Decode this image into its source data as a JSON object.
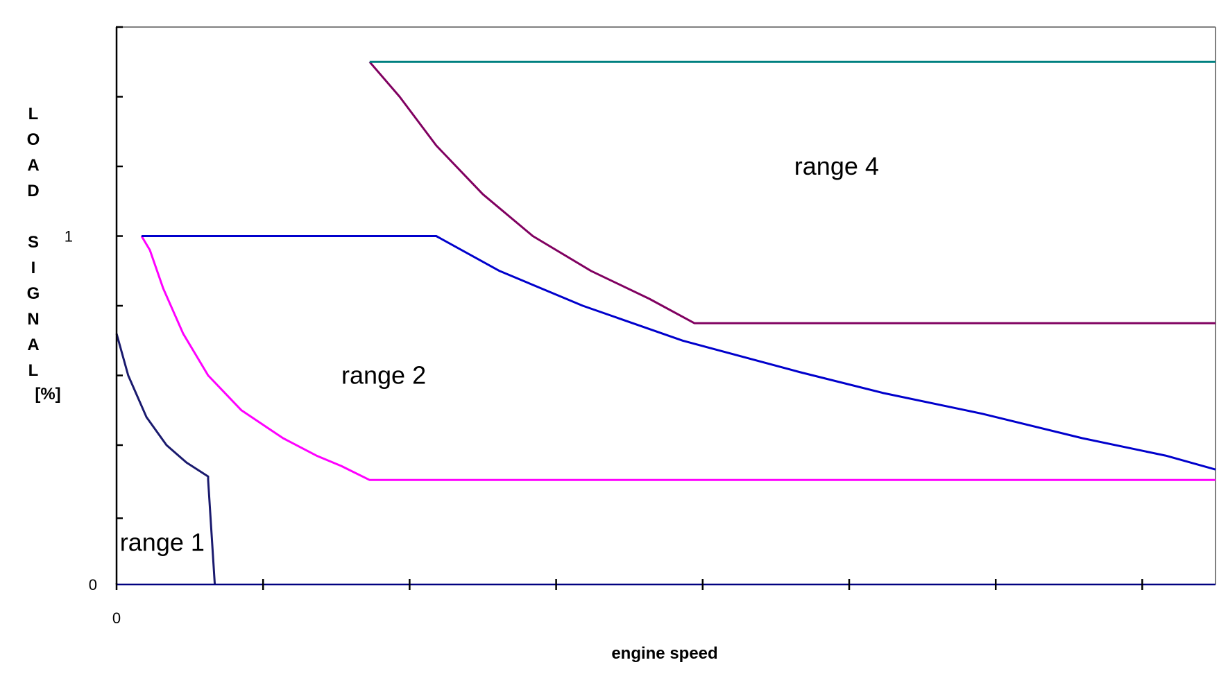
{
  "chart_data": {
    "type": "line",
    "title": "",
    "xlabel": "engine speed",
    "ylabel_letters": [
      "L",
      "O",
      "A",
      "D",
      "",
      "S",
      "I",
      "G",
      "N",
      "A",
      "L"
    ],
    "ylabel_unit": "[%]",
    "xlim": [
      0,
      6.6
    ],
    "ylim": [
      0,
      1.6
    ],
    "x_tick_count": 7,
    "x_tick_labels": [
      {
        "x": 0,
        "label": "0"
      }
    ],
    "y_tick_labels": [
      {
        "y": 1,
        "label": "1"
      },
      {
        "y": 0,
        "label": "0"
      }
    ],
    "grid": false,
    "series": [
      {
        "color": "#1a1a6e",
        "points": [
          [
            0,
            0.72
          ],
          [
            0.07,
            0.6
          ],
          [
            0.18,
            0.48
          ],
          [
            0.3,
            0.4
          ],
          [
            0.42,
            0.35
          ],
          [
            0.55,
            0.31
          ],
          [
            0.55,
            0.3
          ],
          [
            0.59,
            0
          ]
        ]
      },
      {
        "color": "#ff00ff",
        "points": [
          [
            0.15,
            1.0
          ],
          [
            0.2,
            0.96
          ],
          [
            0.28,
            0.85
          ],
          [
            0.4,
            0.72
          ],
          [
            0.55,
            0.6
          ],
          [
            0.75,
            0.5
          ],
          [
            1.0,
            0.42
          ],
          [
            1.2,
            0.37
          ],
          [
            1.35,
            0.34
          ],
          [
            1.52,
            0.3
          ],
          [
            6.6,
            0.3
          ]
        ]
      },
      {
        "color": "#0000cc",
        "points": [
          [
            0.15,
            1.0
          ],
          [
            1.92,
            1.0
          ],
          [
            2.3,
            0.9
          ],
          [
            2.8,
            0.8
          ],
          [
            3.4,
            0.7
          ],
          [
            4.1,
            0.61
          ],
          [
            4.6,
            0.55
          ],
          [
            5.2,
            0.49
          ],
          [
            5.8,
            0.42
          ],
          [
            6.3,
            0.37
          ],
          [
            6.6,
            0.33
          ]
        ]
      },
      {
        "color": "#800060",
        "points": [
          [
            1.52,
            1.5
          ],
          [
            1.7,
            1.4
          ],
          [
            1.92,
            1.26
          ],
          [
            2.2,
            1.12
          ],
          [
            2.5,
            1.0
          ],
          [
            2.85,
            0.9
          ],
          [
            3.2,
            0.82
          ],
          [
            3.47,
            0.75
          ],
          [
            6.6,
            0.75
          ]
        ]
      },
      {
        "color": "#008080",
        "points": [
          [
            1.52,
            1.5
          ],
          [
            6.6,
            1.5
          ]
        ]
      }
    ],
    "annotations": [
      {
        "text": "range 1",
        "x": 0.02,
        "y": 0.12
      },
      {
        "text": "range 2",
        "x": 1.35,
        "y": 0.6
      },
      {
        "text": "range 4",
        "x": 4.07,
        "y": 1.2
      }
    ]
  }
}
